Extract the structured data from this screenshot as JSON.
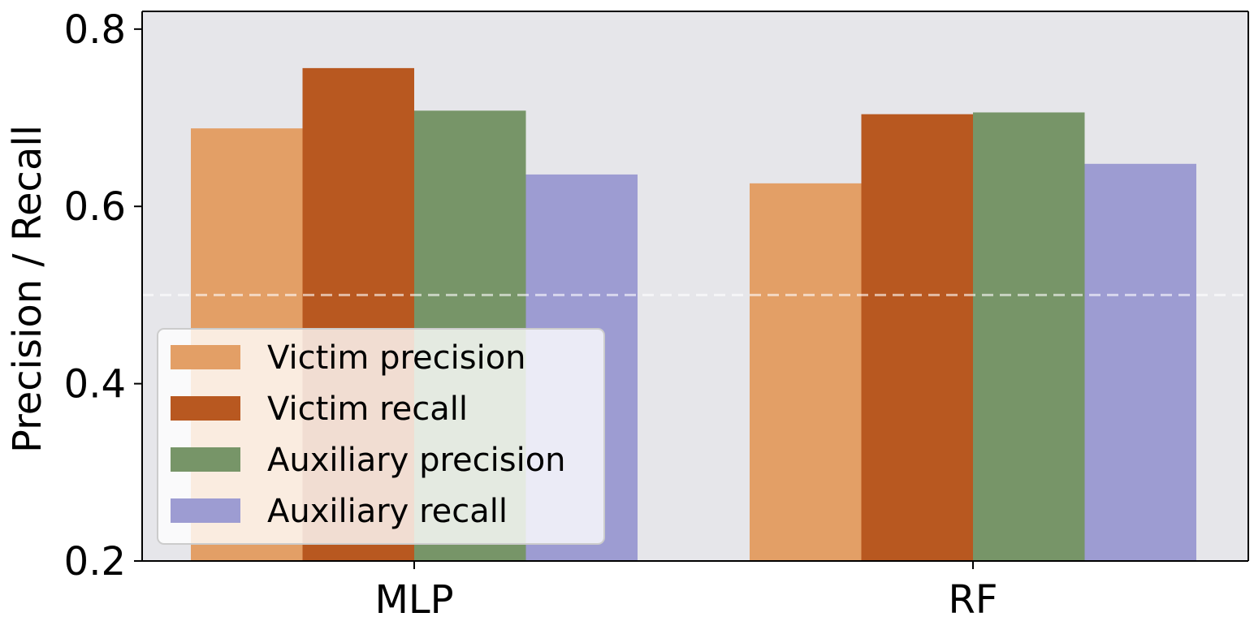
{
  "chart_data": {
    "type": "bar",
    "title": "",
    "xlabel": "",
    "ylabel": "Precision / Recall",
    "categories": [
      "MLP",
      "RF"
    ],
    "series": [
      {
        "name": "Victim precision",
        "color": "#e39f66",
        "values": [
          0.688,
          0.626
        ]
      },
      {
        "name": "Victim recall",
        "color": "#b85820",
        "values": [
          0.756,
          0.704
        ]
      },
      {
        "name": "Auxiliary precision",
        "color": "#779568",
        "values": [
          0.708,
          0.706
        ]
      },
      {
        "name": "Auxiliary recall",
        "color": "#9d9cd2",
        "values": [
          0.636,
          0.648
        ]
      }
    ],
    "ylim": [
      0.2,
      0.82
    ],
    "yticks": [
      0.2,
      0.4,
      0.6,
      0.8
    ],
    "ytick_labels": [
      "0.2",
      "0.4",
      "0.6",
      "0.8"
    ],
    "reference_line": {
      "y": 0.5,
      "style": "dashed",
      "color": "#ffffff"
    },
    "legend_position": "bottom-left",
    "plot_background": "#e6e6ea"
  }
}
